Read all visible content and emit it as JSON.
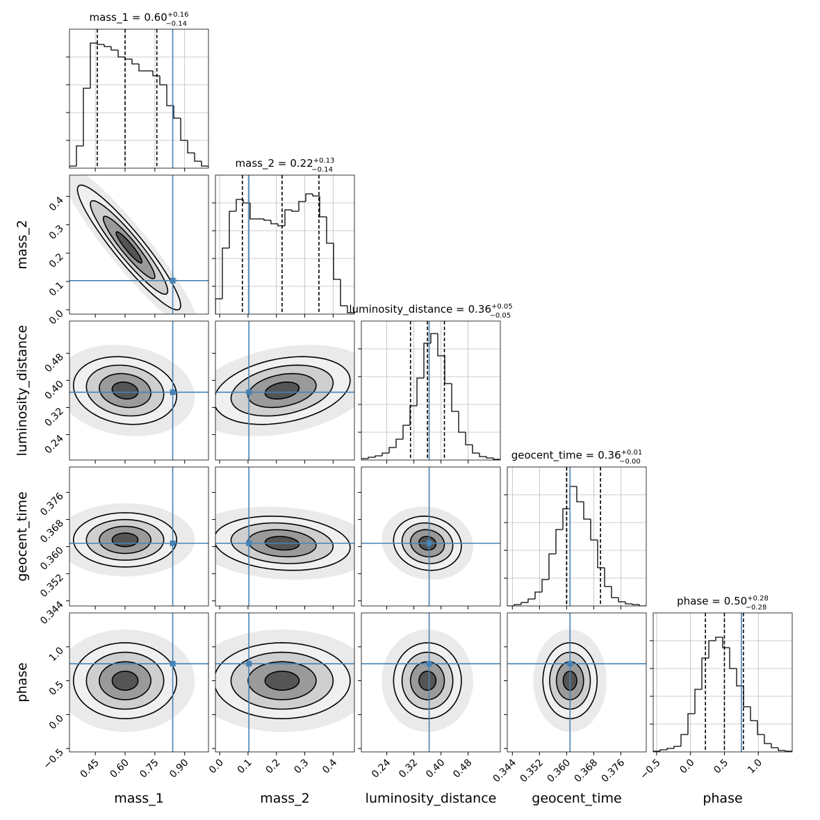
{
  "chart_data": {
    "type": "corner",
    "truth_color": "#4682b4",
    "hist_ylim": [
      0,
      200
    ],
    "hist_yticks": [
      40,
      80,
      120,
      160
    ],
    "params": [
      {
        "label": "mass_1",
        "title": {
          "text": "mass_1 =",
          "median": {
            "value": 0.6,
            "label": "0.60"
          },
          "plus": {
            "value": 0.16,
            "label": "+0.16"
          },
          "minus": {
            "value": 0.14,
            "label": "−0.14"
          }
        },
        "truth": 0.84,
        "lim": [
          0.32,
          1.02
        ],
        "ticks": [
          {
            "value": 0.45,
            "label": "0.45"
          },
          {
            "value": 0.6,
            "label": "0.60"
          },
          {
            "value": 0.75,
            "label": "0.75"
          },
          {
            "value": 0.9,
            "label": "0.90"
          }
        ],
        "bins": [
          0.32,
          0.355,
          0.39,
          0.425,
          0.46,
          0.495,
          0.53,
          0.565,
          0.6,
          0.635,
          0.67,
          0.705,
          0.74,
          0.775,
          0.81,
          0.845,
          0.88,
          0.915,
          0.95,
          0.985,
          1.02
        ],
        "counts": [
          3,
          32,
          115,
          180,
          178,
          175,
          170,
          160,
          157,
          150,
          140,
          140,
          133,
          120,
          90,
          72,
          40,
          22,
          10,
          3
        ],
        "joint": []
      },
      {
        "label": "mass_2",
        "title": {
          "text": "mass_2 =",
          "median": {
            "value": 0.22,
            "label": "0.22"
          },
          "plus": {
            "value": 0.13,
            "label": "+0.13"
          },
          "minus": {
            "value": 0.14,
            "label": "−0.14"
          }
        },
        "truth": 0.103,
        "lim": [
          -0.015,
          0.475
        ],
        "ticks": [
          {
            "value": 0,
            "label": "0.0"
          },
          0.1,
          0.2,
          0.3,
          0.4
        ],
        "bins": [
          -0.015,
          0.0095,
          0.034,
          0.0585,
          0.083,
          0.1075,
          0.132,
          0.1565,
          0.181,
          0.2055,
          0.23,
          0.2545,
          0.279,
          0.3035,
          0.328,
          0.3525,
          0.377,
          0.4015,
          0.426,
          0.4505,
          0.475
        ],
        "counts": [
          22,
          95,
          148,
          165,
          160,
          137,
          137,
          135,
          130,
          127,
          150,
          148,
          162,
          173,
          170,
          140,
          102,
          50,
          12,
          2
        ],
        "joint": [
          {
            "center": [
              0.62,
              0.22
            ],
            "spread": [
              0.13,
              0.11
            ],
            "rho": -0.93
          }
        ]
      },
      {
        "label": "luminosity_distance",
        "title": {
          "text": "luminosity_distance =",
          "median": {
            "value": 0.36,
            "label": "0.36"
          },
          "plus": {
            "value": 0.05,
            "label": "+0.05"
          },
          "minus": {
            "value": 0.05,
            "label": "−0.05"
          }
        },
        "truth": 0.365,
        "lim": [
          0.165,
          0.575
        ],
        "ticks": [
          0.24,
          0.32,
          {
            "value": 0.4,
            "label": "0.40"
          },
          0.48
        ],
        "bins": [
          0.165,
          0.1855,
          0.206,
          0.2265,
          0.247,
          0.2675,
          0.288,
          0.3085,
          0.329,
          0.3495,
          0.37,
          0.3905,
          0.411,
          0.4315,
          0.452,
          0.4725,
          0.493,
          0.5135,
          0.534,
          0.5545,
          0.575
        ],
        "counts": [
          2,
          4,
          6,
          10,
          18,
          30,
          50,
          78,
          118,
          168,
          182,
          150,
          110,
          70,
          40,
          22,
          10,
          5,
          3,
          1
        ],
        "joint": [
          {
            "center": [
              0.6,
              0.37
            ],
            "spread": [
              0.13,
              0.05
            ],
            "rho": -0.15
          },
          {
            "center": [
              0.22,
              0.37
            ],
            "spread": [
              0.12,
              0.05
            ],
            "rho": 0.3
          }
        ]
      },
      {
        "label": "geocent_time",
        "title": {
          "text": "geocent_time =",
          "median": {
            "value": 0.36,
            "label": "0.36"
          },
          "plus": {
            "value": 0.01,
            "label": "+0.01"
          },
          "minus": {
            "value": 0.0,
            "label": "−0.00"
          }
        },
        "truth": 0.361,
        "lim": [
          0.3425,
          0.3835
        ],
        "ticks": [
          0.344,
          0.352,
          {
            "value": 0.36,
            "label": "0.360"
          },
          0.368,
          0.376
        ],
        "bins": [
          0.3425,
          0.34455,
          0.3466,
          0.34865,
          0.3507,
          0.35275,
          0.3548,
          0.35685,
          0.3589,
          0.36095,
          0.363,
          0.36505,
          0.3671,
          0.36915,
          0.3712,
          0.37325,
          0.3753,
          0.37735,
          0.3794,
          0.38145,
          0.3835
        ],
        "counts": [
          0,
          2,
          5,
          10,
          20,
          38,
          75,
          110,
          140,
          172,
          150,
          125,
          95,
          55,
          28,
          12,
          6,
          3,
          2,
          0
        ],
        "joint": [
          {
            "center": [
              0.6,
              0.362
            ],
            "spread": [
              0.13,
              0.004
            ],
            "rho": 0
          },
          {
            "center": [
              0.22,
              0.361
            ],
            "spread": [
              0.12,
              0.004
            ],
            "rho": -0.15
          },
          {
            "center": [
              0.36,
              0.361
            ],
            "spread": [
              0.05,
              0.004
            ],
            "rho": -0.1
          }
        ]
      },
      {
        "label": "phase",
        "title": {
          "text": "phase =",
          "median": {
            "value": 0.5,
            "label": "0.50"
          },
          "plus": {
            "value": 0.28,
            "label": "+0.28"
          },
          "minus": {
            "value": 0.28,
            "label": "−0.28"
          }
        },
        "truth": 0.75,
        "lim": [
          -0.55,
          1.5
        ],
        "ticks": [
          {
            "value": -0.5,
            "label": "−0.5"
          },
          {
            "value": 0,
            "label": "0.0"
          },
          0.5,
          {
            "value": 1,
            "label": "1.0"
          }
        ],
        "bins": [
          -0.55,
          -0.4475,
          -0.345,
          -0.2425,
          -0.14,
          -0.0375,
          0.065,
          0.1675,
          0.27,
          0.3725,
          0.475,
          0.5775,
          0.68,
          0.7825,
          0.885,
          0.9875,
          1.09,
          1.1925,
          1.295,
          1.3975,
          1.5
        ],
        "counts": [
          1,
          3,
          5,
          8,
          25,
          55,
          90,
          135,
          160,
          165,
          150,
          120,
          95,
          65,
          45,
          25,
          12,
          6,
          2,
          1
        ],
        "joint": [
          {
            "center": [
              0.6,
              0.5
            ],
            "spread": [
              0.13,
              0.28
            ],
            "rho": 0
          },
          {
            "center": [
              0.22,
              0.5
            ],
            "spread": [
              0.12,
              0.28
            ],
            "rho": 0
          },
          {
            "center": [
              0.36,
              0.5
            ],
            "spread": [
              0.05,
              0.28
            ],
            "rho": 0
          },
          {
            "center": [
              0.361,
              0.5
            ],
            "spread": [
              0.004,
              0.28
            ],
            "rho": 0
          }
        ]
      }
    ]
  }
}
